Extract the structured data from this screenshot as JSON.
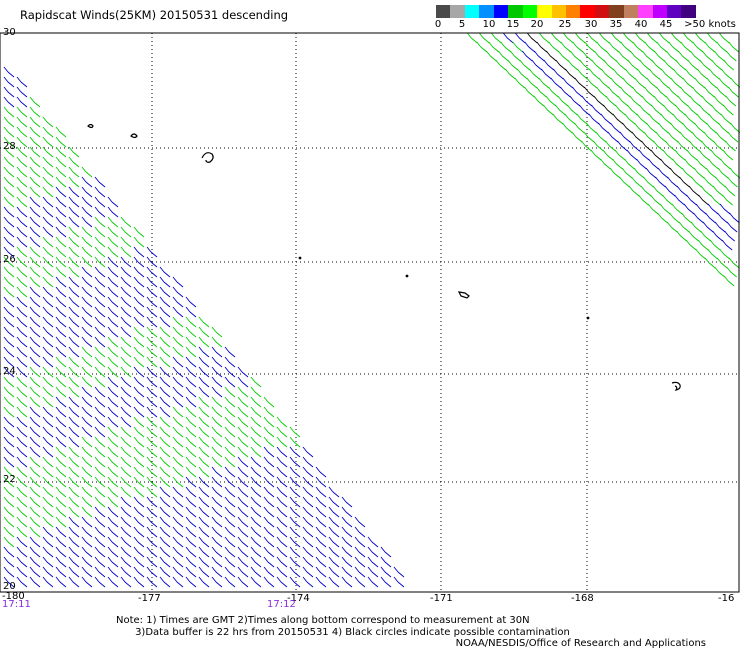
{
  "title": "Rapidscat Winds(25KM) 20150531 descending",
  "legend": {
    "colors": [
      "#4a4a4a",
      "#a7a7a7",
      "#00ffff",
      "#0090ff",
      "#0000ff",
      "#00c800",
      "#00ff00",
      "#ffff00",
      "#ffc000",
      "#ff8000",
      "#ff0000",
      "#d01010",
      "#804020",
      "#c08060",
      "#ff40ff",
      "#c000ff",
      "#6000c0",
      "#400080"
    ],
    "labels": [
      "0",
      "5",
      "10",
      "15",
      "20",
      "25",
      "30",
      "35",
      "40",
      "45",
      ">50 knots"
    ]
  },
  "axes": {
    "x_ticks": [
      "-180",
      "-177",
      "-174",
      "-171",
      "-168",
      "-16"
    ],
    "y_ticks": [
      "30",
      "28",
      "26",
      "24",
      "22",
      "20"
    ],
    "xlim": [
      -180,
      -165.5
    ],
    "ylim": [
      20,
      30
    ]
  },
  "times": [
    "17:11",
    "17:12"
  ],
  "notes": "Note: 1) Times are GMT 2)Times along bottom correspond to measurement at 30N\n      3)Data buffer is 22 hrs from 20150531 4) Black circles indicate possible contamination",
  "credit": "NOAA/NESDIS/Office of Research and Applications",
  "wind_colors": {
    "green": "#00cc00",
    "blue": "#0000cc",
    "black": "#000000"
  }
}
